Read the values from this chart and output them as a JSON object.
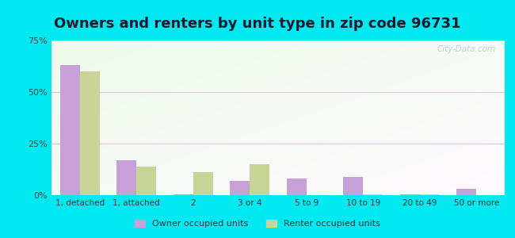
{
  "title": "Owners and renters by unit type in zip code 96731",
  "categories": [
    "1, detached",
    "1, attached",
    "2",
    "3 or 4",
    "5 to 9",
    "10 to 19",
    "20 to 49",
    "50 or more"
  ],
  "owner_values": [
    63,
    17,
    0.3,
    7,
    8,
    9,
    0.3,
    3
  ],
  "renter_values": [
    60,
    14,
    11,
    15,
    0,
    0.5,
    0.3,
    0
  ],
  "owner_color": "#c8a0d8",
  "renter_color": "#c8d496",
  "owner_label": "Owner occupied units",
  "renter_label": "Renter occupied units",
  "ylim": [
    0,
    75
  ],
  "yticks": [
    0,
    25,
    50,
    75
  ],
  "ytick_labels": [
    "0%",
    "25%",
    "50%",
    "75%"
  ],
  "background_outer": "#00e8f0",
  "grid_color": "#e0c8e0",
  "watermark": "City-Data.com",
  "title_fontsize": 13,
  "title_color": "#1a1a2e"
}
